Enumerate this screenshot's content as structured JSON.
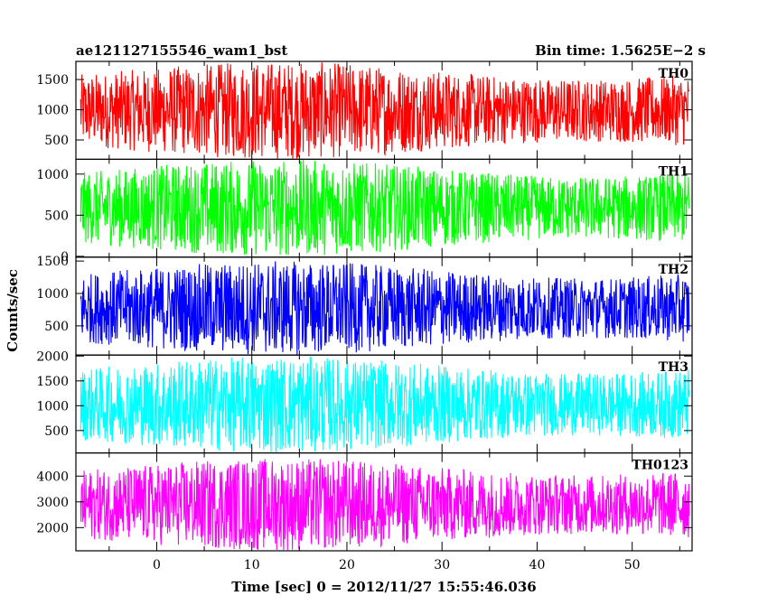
{
  "header": {
    "title_left": "ae121127155546_wam1_bst",
    "title_right": "Bin time: 1.5625E−2 s"
  },
  "chart_data": {
    "type": "line",
    "xlabel": "Time [sec] 0 = 2012/11/27 15:55:46.036",
    "ylabel": "Counts/sec",
    "xlim": [
      -8.5,
      56.3
    ],
    "x_data_range": [
      -8,
      56
    ],
    "x_ticks": [
      0,
      10,
      20,
      30,
      40,
      50
    ],
    "grid": false,
    "panels": [
      {
        "name": "TH0",
        "color": "#ff0000",
        "ylim": [
          180,
          1800
        ],
        "yticks": [
          500,
          1000,
          1500
        ],
        "approx_range": [
          180,
          1800
        ]
      },
      {
        "name": "TH1",
        "color": "#00ff00",
        "ylim": [
          -10,
          1180
        ],
        "yticks": [
          0,
          500,
          1000
        ],
        "approx_range": [
          0,
          1180
        ]
      },
      {
        "name": "TH2",
        "color": "#0000ff",
        "ylim": [
          50,
          1560
        ],
        "yticks": [
          500,
          1000,
          1500
        ],
        "approx_range": [
          50,
          1500
        ]
      },
      {
        "name": "TH3",
        "color": "#00ffff",
        "ylim": [
          50,
          2020
        ],
        "yticks": [
          500,
          1000,
          1500,
          2000
        ],
        "approx_range": [
          50,
          2000
        ]
      },
      {
        "name": "TH0123",
        "color": "#ff00ff",
        "ylim": [
          1100,
          4900
        ],
        "yticks": [
          2000,
          3000,
          4000
        ],
        "approx_range": [
          1100,
          4700
        ]
      }
    ]
  }
}
